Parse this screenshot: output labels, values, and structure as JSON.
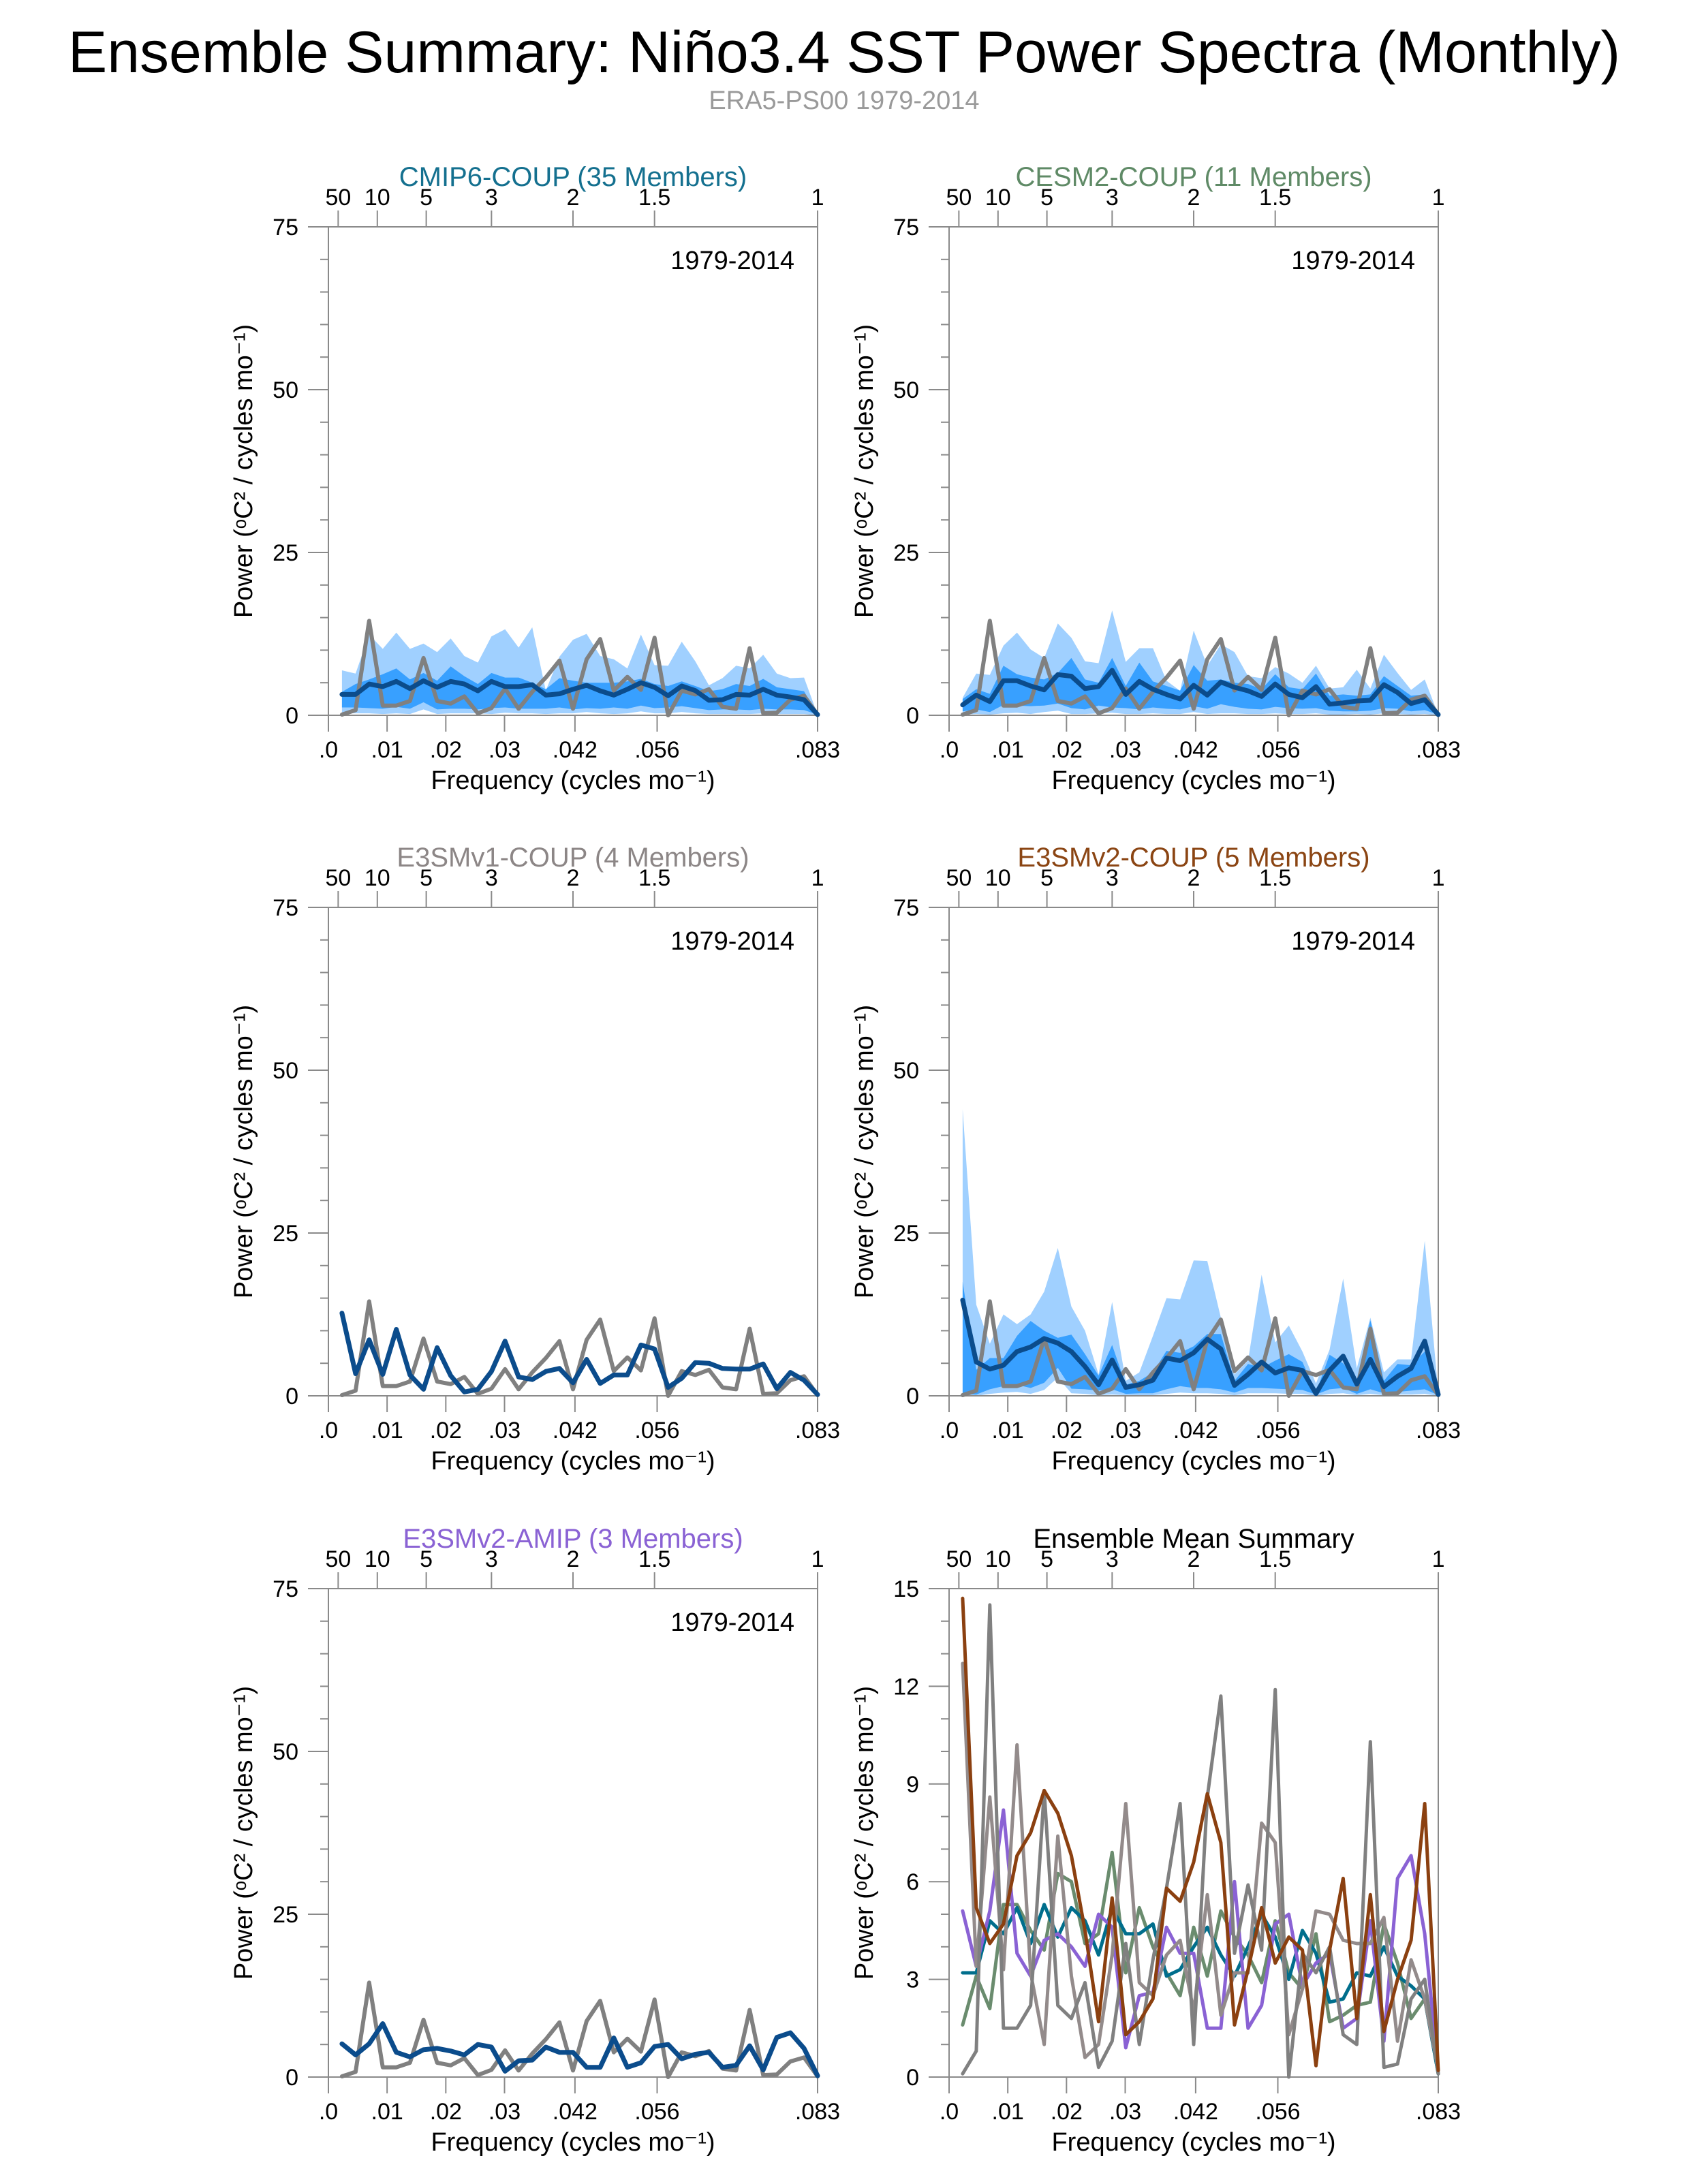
{
  "title": "Ensemble Summary: Niño3.4 SST Power Spectra (Monthly)",
  "subtitle": "ERA5-PS00 1979-2014",
  "colors": {
    "obs": "#808080",
    "panel_mean": "#0b4c8c",
    "band_outer": "#a0d0ff",
    "band_inner": "#38a0ff",
    "subtitle": "#9a9a9a"
  },
  "chart_data": {
    "type": "line",
    "x_note": "36 frequencies k/432 cycles per month, k=1..36",
    "xlim": [
      0,
      0.08333
    ],
    "xlabel": "Frequency (cycles mo⁻¹)",
    "ylabel": "Power (ᵒC² / cycles mo⁻¹)",
    "bottom_ticks": [
      {
        "value": 0,
        "label": ".0"
      },
      {
        "value": 0.01,
        "label": ".01"
      },
      {
        "value": 0.02,
        "label": ".02"
      },
      {
        "value": 0.03,
        "label": ".03"
      },
      {
        "value": 0.042,
        "label": ".042"
      },
      {
        "value": 0.056,
        "label": ".056"
      },
      {
        "value": 0.08333,
        "label": ".083"
      }
    ],
    "top_ticks_period_years": [
      {
        "value": 50,
        "label": "50"
      },
      {
        "value": 10,
        "label": "10"
      },
      {
        "value": 5,
        "label": "5"
      },
      {
        "value": 3,
        "label": "3"
      },
      {
        "value": 2,
        "label": "2"
      },
      {
        "value": 1.5,
        "label": "1.5"
      },
      {
        "value": 1,
        "label": "1"
      }
    ],
    "obs": {
      "name": "ERA5-PS00",
      "values": [
        0.1,
        0.8,
        14.5,
        1.5,
        1.5,
        2.2,
        8.8,
        2.2,
        1.8,
        2.9,
        0.3,
        1.1,
        4.1,
        1.0,
        3.6,
        5.8,
        8.4,
        1.0,
        8.6,
        11.7,
        3.8,
        5.9,
        3.9,
        11.9,
        0.0,
        3.8,
        3.2,
        4.0,
        1.3,
        1.0,
        10.3,
        0.3,
        0.4,
        2.4,
        3.0,
        0.1
      ]
    },
    "panels": [
      {
        "id": "cmip6",
        "title": "CMIP6-COUP (35 Members)",
        "title_color": "#14708f",
        "period": "1979-2014",
        "ylim": [
          0,
          75
        ],
        "yticks": [
          0,
          25,
          50,
          75
        ],
        "minor": 5,
        "mean": [
          3.2,
          3.2,
          4.8,
          4.4,
          5.2,
          4.1,
          5.3,
          4.3,
          5.2,
          4.8,
          3.75,
          5.2,
          4.4,
          4.4,
          4.7,
          3.1,
          3.3,
          4.0,
          4.6,
          3.75,
          3.1,
          4.0,
          5.0,
          4.3,
          3.0,
          4.5,
          3.8,
          2.3,
          2.4,
          3.2,
          3.1,
          4.0,
          3.1,
          2.8,
          2.4,
          0.1
        ],
        "band_outer_hi": [
          6.9,
          6.4,
          12.4,
          10.2,
          12.7,
          10.2,
          11.0,
          9.7,
          11.8,
          9.1,
          8.1,
          12.1,
          13.2,
          10.4,
          13.5,
          3.8,
          9.0,
          11.6,
          12.5,
          9.1,
          8.6,
          7.2,
          12.4,
          7.7,
          7.6,
          11.3,
          8.3,
          4.6,
          5.7,
          7.6,
          7.2,
          9.3,
          6.4,
          5.7,
          5.8,
          0.1
        ],
        "band_inner_hi": [
          3.6,
          4.8,
          5.5,
          6.3,
          7.2,
          5.5,
          6.5,
          5.3,
          7.5,
          6.0,
          4.8,
          6.5,
          5.8,
          5.8,
          5.0,
          4.0,
          5.7,
          5.3,
          5.0,
          5.0,
          5.0,
          5.2,
          5.6,
          4.8,
          4.5,
          5.2,
          4.5,
          3.7,
          4.0,
          4.8,
          4.5,
          5.6,
          4.3,
          4.0,
          3.7,
          0.1
        ],
        "band_inner_lo": [
          1.2,
          1.2,
          1.1,
          1.0,
          1.3,
          1.0,
          2.0,
          0.9,
          1.0,
          1.0,
          0.9,
          1.1,
          1.2,
          1.0,
          1.0,
          1.0,
          1.2,
          0.9,
          1.1,
          1.0,
          1.2,
          1.0,
          1.5,
          1.1,
          1.2,
          1.4,
          1.1,
          0.8,
          0.9,
          0.9,
          0.8,
          1.0,
          0.9,
          0.9,
          0.8,
          0.1
        ],
        "band_outer_lo": [
          0.3,
          0.3,
          0.3,
          0.2,
          0.3,
          0.2,
          0.9,
          0.2,
          0.3,
          0.3,
          0.3,
          0.2,
          0.4,
          0.3,
          0.3,
          0.2,
          0.3,
          0.3,
          0.5,
          0.3,
          0.2,
          0.3,
          0.6,
          0.3,
          0.3,
          0.5,
          0.3,
          0.2,
          0.2,
          0.2,
          0.2,
          0.3,
          0.2,
          0.2,
          0.2,
          0.0
        ]
      },
      {
        "id": "cesm2",
        "title": "CESM2-COUP (11 Members)",
        "title_color": "#5f8a66",
        "period": "1979-2014",
        "ylim": [
          0,
          75
        ],
        "yticks": [
          0,
          25,
          50,
          75
        ],
        "minor": 5,
        "mean": [
          1.6,
          3.1,
          2.1,
          5.3,
          5.3,
          4.5,
          3.9,
          6.25,
          6.0,
          4.1,
          4.4,
          6.9,
          3.2,
          5.2,
          4.0,
          3.2,
          2.5,
          4.6,
          3.1,
          5.1,
          4.3,
          3.75,
          2.9,
          4.8,
          3.2,
          2.7,
          4.4,
          1.7,
          1.9,
          2.2,
          2.3,
          4.7,
          3.5,
          1.8,
          2.4,
          0.1
        ],
        "band_outer_hi": [
          2.7,
          6.4,
          6.2,
          10.7,
          12.7,
          10.1,
          8.8,
          14.1,
          11.9,
          8.3,
          8.0,
          16.1,
          8.2,
          10.3,
          10.3,
          5.3,
          3.75,
          13.0,
          7.6,
          10.9,
          9.7,
          6.0,
          5.7,
          7.4,
          6.4,
          5.0,
          7.6,
          4.1,
          4.3,
          7.0,
          4.1,
          9.3,
          6.5,
          3.9,
          5.5,
          0.1
        ],
        "band_inner_hi": [
          2.5,
          4.0,
          3.3,
          7.6,
          6.3,
          5.8,
          5.5,
          6.5,
          8.8,
          5.5,
          5.0,
          8.8,
          4.5,
          8.1,
          5.2,
          4.5,
          3.8,
          7.7,
          5.3,
          5.5,
          5.0,
          4.8,
          4.0,
          6.3,
          4.3,
          4.0,
          6.4,
          3.0,
          3.2,
          3.0,
          3.2,
          6.0,
          4.5,
          3.0,
          3.2,
          0.1
        ],
        "band_inner_lo": [
          0.6,
          0.9,
          0.5,
          1.6,
          1.5,
          1.4,
          1.5,
          1.8,
          1.1,
          0.9,
          1.5,
          1.2,
          1.1,
          0.9,
          1.2,
          1.0,
          0.9,
          1.4,
          1.0,
          1.7,
          1.3,
          1.0,
          0.9,
          1.3,
          1.1,
          1.0,
          1.1,
          0.7,
          0.6,
          0.6,
          0.7,
          1.1,
          1.0,
          0.6,
          0.8,
          0.1
        ],
        "band_outer_lo": [
          0.1,
          0.2,
          0.1,
          0.3,
          0.4,
          0.2,
          0.5,
          0.7,
          0.2,
          0.2,
          0.3,
          0.4,
          0.2,
          0.2,
          0.3,
          0.2,
          0.2,
          0.5,
          0.2,
          0.3,
          0.3,
          0.2,
          0.2,
          0.3,
          0.2,
          0.2,
          0.3,
          0.1,
          0.1,
          0.2,
          0.1,
          0.3,
          0.2,
          0.1,
          0.2,
          0.0
        ]
      },
      {
        "id": "e3smv1",
        "title": "E3SMv1-COUP (4 Members)",
        "title_color": "#8c8686",
        "period": "1979-2014",
        "ylim": [
          0,
          75
        ],
        "yticks": [
          0,
          25,
          50,
          75
        ],
        "minor": 5,
        "mean": [
          12.7,
          3.4,
          8.6,
          3.3,
          10.2,
          3.2,
          1.0,
          7.4,
          3.1,
          0.6,
          1.0,
          3.75,
          8.4,
          2.9,
          2.5,
          3.75,
          4.2,
          2.0,
          5.6,
          1.9,
          3.2,
          3.2,
          7.8,
          7.2,
          1.3,
          2.7,
          5.1,
          5.0,
          4.2,
          4.1,
          4.1,
          4.9,
          1.1,
          3.6,
          2.4,
          0.2
        ]
      },
      {
        "id": "e3smv2",
        "title": "E3SMv2-COUP (5 Members)",
        "title_color": "#8b4513",
        "period": "1979-2014",
        "ylim": [
          0,
          75
        ],
        "yticks": [
          0,
          25,
          50,
          75
        ],
        "minor": 5,
        "mean": [
          14.7,
          5.2,
          4.1,
          4.7,
          6.8,
          7.5,
          8.8,
          8.1,
          6.8,
          4.5,
          1.7,
          5.5,
          1.3,
          1.7,
          2.4,
          5.8,
          5.4,
          6.6,
          8.7,
          7.2,
          1.6,
          3.3,
          5.2,
          3.5,
          4.3,
          3.9,
          0.35,
          3.9,
          6.1,
          1.8,
          5.6,
          1.4,
          3.0,
          4.2,
          8.4,
          0.2
        ],
        "band_outer_hi": [
          44,
          14,
          8,
          12.5,
          11,
          12.5,
          16,
          22.7,
          13.7,
          10,
          3.3,
          14.4,
          2.3,
          3.6,
          9.2,
          15,
          14.8,
          20.8,
          20.7,
          12,
          3.3,
          5.4,
          18.6,
          8.2,
          10.8,
          6.8,
          1.9,
          7.1,
          18,
          4.2,
          12,
          3.6,
          5.6,
          5.6,
          23.8,
          0.5
        ],
        "band_inner_hi": [
          17.5,
          4,
          5.8,
          5.8,
          9.2,
          11.5,
          10,
          8.9,
          9.4,
          6.4,
          3.1,
          7.8,
          1.7,
          2.3,
          3.6,
          6.9,
          6.6,
          7.6,
          9.5,
          9.5,
          2.3,
          4.9,
          4.3,
          5.4,
          6.4,
          5.2,
          0.5,
          6.3,
          5.0,
          2.4,
          11.6,
          2.3,
          4.9,
          4.7,
          6.8,
          0.2
        ],
        "band_inner_lo": [
          0.3,
          0.2,
          1.0,
          1.5,
          1.7,
          1.2,
          2.0,
          4.3,
          1.1,
          1.0,
          0.8,
          1.0,
          0.3,
          0.4,
          0.4,
          1.0,
          1.5,
          1.2,
          1.2,
          1.0,
          0.5,
          1.2,
          1.2,
          1.1,
          1.0,
          0.9,
          0.2,
          1.0,
          1.2,
          0.3,
          1.0,
          0.4,
          0.6,
          0.8,
          1.0,
          0.1
        ],
        "band_outer_lo": [
          0.0,
          0.0,
          0.3,
          0.5,
          0.6,
          0.3,
          0.9,
          2.8,
          0.4,
          0.3,
          0.1,
          0.2,
          0.1,
          0.1,
          0.1,
          0.3,
          0.5,
          0.4,
          0.4,
          0.3,
          0.1,
          0.4,
          0.4,
          0.4,
          0.3,
          0.3,
          0.0,
          0.3,
          0.4,
          0.1,
          0.3,
          0.1,
          0.2,
          0.2,
          0.3,
          0.0
        ]
      },
      {
        "id": "amip",
        "title": "E3SMv2-AMIP (3 Members)",
        "title_color": "#8a62d4",
        "period": "1979-2014",
        "ylim": [
          0,
          75
        ],
        "yticks": [
          0,
          25,
          50,
          75
        ],
        "minor": 5,
        "mean": [
          5.1,
          3.4,
          5.1,
          8.2,
          3.8,
          3.1,
          4.2,
          4.4,
          4.0,
          3.4,
          5.0,
          4.6,
          0.9,
          2.5,
          2.6,
          4.6,
          3.8,
          3.8,
          1.5,
          1.5,
          6.0,
          1.5,
          2.2,
          4.7,
          5.0,
          2.8,
          3.5,
          3.8,
          1.5,
          1.8,
          4.8,
          1.1,
          6.1,
          6.8,
          4.4,
          0.2
        ]
      },
      {
        "id": "summary",
        "title": "Ensemble Mean Summary",
        "title_color": "#000000",
        "period": "",
        "ylim": [
          0,
          15
        ],
        "yticks": [
          0,
          3,
          6,
          9,
          12,
          15
        ],
        "minor": 1,
        "summary_series": [
          {
            "name": "CESM2-COUP",
            "ref": "cesm2",
            "color": "#6a8c6e"
          },
          {
            "name": "CMIP6-COUP",
            "ref": "cmip6",
            "color": "#006e8c"
          },
          {
            "name": "E3SMv2-AMIP",
            "ref": "amip",
            "color": "#8a62d4"
          },
          {
            "name": "E3SMv1-COUP",
            "ref": "e3smv1",
            "color": "#938b8b"
          },
          {
            "name": "ERA5-PS00",
            "ref": "obs",
            "color": "#808080"
          },
          {
            "name": "E3SMv2-COUP",
            "ref": "e3smv2",
            "color": "#8b4010"
          }
        ]
      }
    ]
  }
}
